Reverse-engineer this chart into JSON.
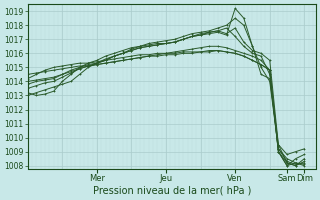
{
  "bg_color": "#c8e8e8",
  "grid_major_color": "#aacccc",
  "grid_minor_color": "#bbdddd",
  "line_color": "#2a5a2a",
  "yticks": [
    1008,
    1009,
    1010,
    1011,
    1012,
    1013,
    1014,
    1015,
    1016,
    1017,
    1018,
    1019
  ],
  "ylim": [
    1007.8,
    1019.5
  ],
  "xlabel": "Pression niveau de la mer( hPa )",
  "day_labels": [
    "Mer",
    "Jeu",
    "Ven",
    "Sam",
    "Dim"
  ],
  "day_positions": [
    48,
    96,
    144,
    180,
    192
  ],
  "xlim": [
    0,
    200
  ],
  "lines": [
    {
      "x": [
        0,
        6,
        12,
        18,
        24,
        30,
        36,
        42,
        48,
        54,
        60,
        66,
        72,
        78,
        84,
        90,
        96,
        102,
        108,
        114,
        120,
        126,
        132,
        138,
        144,
        150,
        156,
        162,
        168,
        174,
        180,
        186,
        192
      ],
      "y": [
        1013.8,
        1014.0,
        1014.1,
        1014.2,
        1014.5,
        1014.8,
        1015.0,
        1015.2,
        1015.3,
        1015.5,
        1015.8,
        1016.0,
        1016.2,
        1016.4,
        1016.5,
        1016.6,
        1016.7,
        1016.8,
        1017.0,
        1017.2,
        1017.3,
        1017.4,
        1017.5,
        1017.3,
        1019.2,
        1018.5,
        1016.5,
        1014.5,
        1014.2,
        1009.5,
        1008.2,
        1008.0,
        1008.5
      ]
    },
    {
      "x": [
        0,
        6,
        12,
        18,
        24,
        30,
        36,
        42,
        48,
        54,
        60,
        66,
        72,
        78,
        84,
        90,
        96,
        102,
        108,
        114,
        120,
        126,
        132,
        138,
        144,
        150,
        156,
        162,
        168,
        174,
        180,
        186,
        192
      ],
      "y": [
        1014.2,
        1014.5,
        1014.8,
        1015.0,
        1015.1,
        1015.2,
        1015.3,
        1015.3,
        1015.4,
        1015.5,
        1015.6,
        1015.7,
        1015.8,
        1015.9,
        1015.9,
        1016.0,
        1016.0,
        1016.0,
        1016.1,
        1016.1,
        1016.1,
        1016.2,
        1016.2,
        1016.1,
        1016.0,
        1015.8,
        1015.5,
        1015.2,
        1014.8,
        1009.0,
        1008.0,
        1008.2,
        1008.1
      ]
    },
    {
      "x": [
        0,
        6,
        12,
        18,
        24,
        30,
        36,
        42,
        48,
        54,
        60,
        66,
        72,
        78,
        84,
        90,
        96,
        102,
        108,
        114,
        120,
        126,
        132,
        138,
        144,
        150,
        156,
        162,
        168,
        174,
        180,
        186,
        192
      ],
      "y": [
        1013.5,
        1013.7,
        1013.9,
        1014.0,
        1014.3,
        1014.6,
        1014.9,
        1015.1,
        1015.3,
        1015.5,
        1015.8,
        1016.0,
        1016.3,
        1016.5,
        1016.7,
        1016.8,
        1016.9,
        1017.0,
        1017.2,
        1017.4,
        1017.5,
        1017.6,
        1017.8,
        1018.0,
        1018.5,
        1018.0,
        1016.5,
        1015.0,
        1014.0,
        1009.2,
        1008.3,
        1008.1,
        1008.2
      ]
    },
    {
      "x": [
        0,
        6,
        12,
        18,
        24,
        30,
        36,
        42,
        48,
        54,
        60,
        66,
        72,
        78,
        84,
        90,
        96,
        102,
        108,
        114,
        120,
        126,
        132,
        138,
        144,
        150,
        156,
        162,
        168,
        174,
        180,
        186,
        192
      ],
      "y": [
        1014.0,
        1014.1,
        1014.2,
        1014.3,
        1014.5,
        1014.7,
        1014.9,
        1015.1,
        1015.2,
        1015.3,
        1015.4,
        1015.5,
        1015.6,
        1015.7,
        1015.8,
        1015.9,
        1016.0,
        1016.1,
        1016.2,
        1016.3,
        1016.4,
        1016.5,
        1016.5,
        1016.4,
        1016.2,
        1016.0,
        1015.8,
        1015.5,
        1014.8,
        1009.0,
        1008.2,
        1008.0,
        1008.3
      ]
    },
    {
      "x": [
        0,
        6,
        12,
        18,
        24,
        30,
        36,
        42,
        48,
        54,
        60,
        66,
        72,
        78,
        84,
        90,
        96,
        102,
        108,
        114,
        120,
        126,
        132,
        138,
        144,
        150,
        156,
        162,
        168,
        174,
        180,
        186,
        192
      ],
      "y": [
        1013.2,
        1013.0,
        1013.1,
        1013.3,
        1014.0,
        1014.5,
        1015.0,
        1015.3,
        1015.5,
        1015.8,
        1016.0,
        1016.2,
        1016.4,
        1016.5,
        1016.6,
        1016.7,
        1016.7,
        1016.8,
        1017.0,
        1017.2,
        1017.3,
        1017.5,
        1017.6,
        1017.4,
        1017.8,
        1016.8,
        1016.2,
        1016.0,
        1015.5,
        1009.5,
        1008.8,
        1009.0,
        1009.2
      ]
    },
    {
      "x": [
        0,
        6,
        12,
        18,
        24,
        30,
        36,
        42,
        48,
        54,
        60,
        66,
        72,
        78,
        84,
        90,
        96,
        102,
        108,
        114,
        120,
        126,
        132,
        138,
        144,
        150,
        156,
        162,
        168,
        174,
        180,
        186,
        192
      ],
      "y": [
        1014.5,
        1014.6,
        1014.7,
        1014.8,
        1014.9,
        1015.0,
        1015.1,
        1015.1,
        1015.2,
        1015.3,
        1015.4,
        1015.5,
        1015.6,
        1015.7,
        1015.8,
        1015.8,
        1015.9,
        1015.9,
        1016.0,
        1016.0,
        1016.1,
        1016.1,
        1016.2,
        1016.1,
        1016.0,
        1015.8,
        1015.5,
        1015.2,
        1014.8,
        1009.2,
        1008.5,
        1008.2,
        1008.0
      ]
    },
    {
      "x": [
        0,
        6,
        12,
        18,
        24,
        30,
        36,
        42,
        48,
        54,
        60,
        66,
        72,
        78,
        84,
        90,
        96,
        102,
        108,
        114,
        120,
        126,
        132,
        138,
        144,
        150,
        156,
        162,
        168,
        174,
        180,
        186,
        192
      ],
      "y": [
        1013.0,
        1013.2,
        1013.4,
        1013.6,
        1013.8,
        1014.0,
        1014.5,
        1015.0,
        1015.3,
        1015.6,
        1015.8,
        1016.0,
        1016.2,
        1016.4,
        1016.5,
        1016.6,
        1016.7,
        1016.8,
        1017.0,
        1017.2,
        1017.4,
        1017.5,
        1017.6,
        1017.8,
        1017.2,
        1016.5,
        1016.0,
        1015.8,
        1014.5,
        1009.0,
        1008.0,
        1008.5,
        1008.8
      ]
    }
  ]
}
